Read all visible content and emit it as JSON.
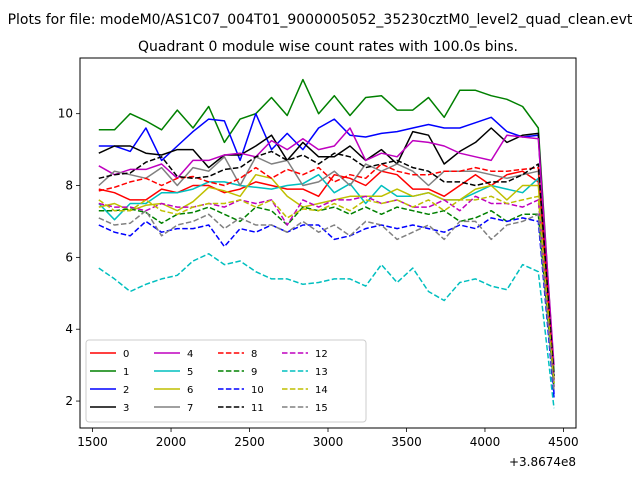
{
  "chart_data": {
    "type": "line",
    "suptitle": "Plots for file: modeM0/AS1C07_004T01_9000005052_35230cztM0_level2_quad_clean.evt",
    "title": "Quadrant 0 module wise count rates with 100.0s bins.",
    "xlabel": "",
    "ylabel": "",
    "x_offset_label": "+3.8674e8",
    "xlim": [
      1420,
      4580
    ],
    "ylim": [
      1.25,
      11.55
    ],
    "x_ticks": [
      1500,
      2000,
      2500,
      3000,
      3500,
      4000,
      4500
    ],
    "x_tick_labels": [
      "1500",
      "2000",
      "2500",
      "3000",
      "3500",
      "4000",
      "4500"
    ],
    "y_ticks": [
      2,
      4,
      6,
      8,
      10
    ],
    "y_tick_labels": [
      "2",
      "4",
      "6",
      "8",
      "10"
    ],
    "legend_location": "lower-left",
    "x": [
      1540,
      1640,
      1740,
      1840,
      1940,
      2040,
      2140,
      2240,
      2340,
      2440,
      2540,
      2640,
      2740,
      2840,
      2940,
      3040,
      3140,
      3240,
      3340,
      3440,
      3540,
      3640,
      3740,
      3840,
      3940,
      4040,
      4140,
      4240,
      4340,
      4440
    ],
    "series": [
      {
        "name": "0",
        "color": "#ff0000",
        "dash": "solid",
        "values": [
          7.9,
          7.8,
          7.6,
          7.6,
          7.9,
          7.8,
          8.0,
          8.0,
          7.8,
          7.9,
          8.1,
          8.0,
          7.9,
          7.9,
          7.7,
          8.3,
          8.2,
          8.0,
          8.4,
          8.3,
          7.9,
          7.9,
          7.7,
          8.0,
          8.3,
          8.0,
          8.3,
          8.4,
          8.1,
          2.6
        ]
      },
      {
        "name": "1",
        "color": "#008000",
        "dash": "solid",
        "values": [
          9.55,
          9.55,
          10.0,
          9.8,
          9.55,
          10.1,
          9.6,
          10.2,
          9.2,
          9.85,
          10.0,
          10.45,
          9.95,
          10.95,
          10.0,
          10.5,
          9.95,
          10.45,
          10.5,
          10.1,
          10.1,
          10.45,
          9.9,
          10.65,
          10.65,
          10.5,
          10.4,
          10.2,
          9.6,
          2.8
        ]
      },
      {
        "name": "2",
        "color": "#0000ff",
        "dash": "solid",
        "values": [
          9.1,
          9.1,
          8.95,
          9.6,
          8.7,
          9.1,
          9.5,
          9.85,
          9.8,
          8.7,
          10.0,
          9.0,
          9.45,
          9.0,
          9.6,
          9.85,
          9.4,
          9.35,
          9.45,
          9.5,
          9.6,
          9.7,
          9.6,
          9.6,
          9.75,
          9.9,
          9.5,
          9.35,
          9.4,
          2.2
        ]
      },
      {
        "name": "3",
        "color": "#000000",
        "dash": "solid",
        "values": [
          8.9,
          9.1,
          9.1,
          8.9,
          8.85,
          9.0,
          9.0,
          8.5,
          8.85,
          8.85,
          9.1,
          9.4,
          8.7,
          9.2,
          8.8,
          8.8,
          9.1,
          8.7,
          9.0,
          8.6,
          9.5,
          9.4,
          8.6,
          8.95,
          9.2,
          9.6,
          9.2,
          9.4,
          9.45,
          2.6
        ]
      },
      {
        "name": "4",
        "color": "#bf00bf",
        "dash": "solid",
        "values": [
          8.55,
          8.3,
          8.45,
          8.45,
          8.6,
          8.2,
          8.7,
          8.7,
          8.85,
          8.9,
          8.8,
          9.25,
          9.0,
          9.3,
          9.0,
          9.1,
          9.6,
          8.7,
          8.9,
          8.8,
          9.25,
          9.2,
          9.1,
          8.9,
          8.8,
          8.7,
          9.4,
          9.35,
          9.3,
          3.0
        ]
      },
      {
        "name": "5",
        "color": "#00bfbf",
        "dash": "solid",
        "values": [
          7.5,
          7.05,
          7.5,
          7.5,
          7.8,
          7.8,
          7.9,
          8.1,
          8.1,
          8.0,
          7.95,
          7.9,
          8.0,
          8.05,
          8.3,
          7.8,
          8.05,
          7.5,
          8.0,
          7.7,
          7.7,
          7.8,
          7.6,
          7.6,
          7.8,
          8.0,
          7.9,
          7.8,
          8.2,
          2.7
        ]
      },
      {
        "name": "6",
        "color": "#bfbf00",
        "dash": "solid",
        "values": [
          7.4,
          7.5,
          7.3,
          7.45,
          7.5,
          7.3,
          7.55,
          7.95,
          7.85,
          7.7,
          8.3,
          8.2,
          7.7,
          7.4,
          7.5,
          7.6,
          7.7,
          7.7,
          7.7,
          7.9,
          7.7,
          7.8,
          7.6,
          7.6,
          7.9,
          8.0,
          7.6,
          8.0,
          8.0,
          2.5
        ]
      },
      {
        "name": "7",
        "color": "#808080",
        "dash": "solid",
        "values": [
          8.0,
          8.4,
          8.3,
          8.2,
          8.5,
          8.0,
          8.5,
          8.4,
          8.8,
          8.0,
          8.8,
          8.6,
          8.7,
          8.0,
          8.1,
          8.4,
          8.0,
          8.6,
          8.4,
          8.6,
          8.4,
          8.0,
          8.4,
          8.4,
          8.4,
          8.3,
          8.2,
          8.3,
          8.4,
          2.5
        ]
      },
      {
        "name": "8",
        "color": "#ff0000",
        "dash": "dashed",
        "values": [
          7.85,
          7.95,
          8.1,
          8.2,
          8.0,
          8.2,
          8.25,
          8.1,
          8.0,
          8.2,
          8.5,
          8.2,
          8.45,
          8.3,
          8.5,
          8.1,
          8.3,
          8.2,
          8.6,
          8.4,
          8.3,
          8.3,
          8.4,
          8.4,
          8.5,
          8.4,
          8.4,
          8.45,
          8.5,
          2.6
        ]
      },
      {
        "name": "9",
        "color": "#008000",
        "dash": "dashed",
        "values": [
          7.3,
          7.3,
          7.35,
          7.25,
          6.95,
          7.2,
          7.25,
          7.4,
          7.2,
          7.0,
          7.4,
          7.3,
          6.9,
          7.4,
          7.3,
          7.4,
          7.2,
          7.4,
          7.2,
          7.4,
          7.3,
          7.2,
          7.3,
          7.0,
          7.1,
          7.3,
          7.0,
          7.2,
          7.2,
          2.4
        ]
      },
      {
        "name": "10",
        "color": "#0000ff",
        "dash": "dashed",
        "values": [
          6.9,
          6.7,
          6.6,
          7.0,
          6.7,
          6.8,
          6.8,
          6.9,
          6.3,
          6.8,
          6.7,
          6.9,
          6.7,
          6.9,
          6.9,
          6.5,
          6.6,
          6.8,
          6.9,
          6.8,
          6.9,
          6.8,
          6.7,
          6.9,
          6.8,
          7.1,
          7.0,
          7.1,
          7.0,
          2.1
        ]
      },
      {
        "name": "11",
        "color": "#000000",
        "dash": "dashed",
        "values": [
          8.2,
          8.3,
          8.35,
          8.65,
          8.8,
          8.25,
          8.2,
          8.25,
          8.45,
          8.5,
          8.8,
          8.95,
          8.7,
          8.85,
          8.6,
          8.9,
          8.8,
          8.5,
          8.6,
          8.7,
          8.5,
          8.4,
          8.1,
          8.1,
          8.0,
          8.1,
          8.1,
          8.3,
          8.6,
          2.7
        ]
      },
      {
        "name": "12",
        "color": "#bf00bf",
        "dash": "dashed",
        "values": [
          7.5,
          7.4,
          7.4,
          7.3,
          7.5,
          7.4,
          7.4,
          7.5,
          7.4,
          7.6,
          7.5,
          7.6,
          6.9,
          7.6,
          7.4,
          7.6,
          7.6,
          7.7,
          7.5,
          7.6,
          7.4,
          7.4,
          7.6,
          7.3,
          7.7,
          7.5,
          7.5,
          7.4,
          7.6,
          2.4
        ]
      },
      {
        "name": "13",
        "color": "#00bfbf",
        "dash": "dashed",
        "values": [
          5.7,
          5.4,
          5.05,
          5.25,
          5.4,
          5.5,
          5.9,
          6.1,
          5.8,
          5.9,
          5.6,
          5.4,
          5.4,
          5.25,
          5.3,
          5.4,
          5.4,
          5.2,
          5.8,
          5.3,
          5.7,
          5.05,
          4.8,
          5.3,
          5.4,
          5.2,
          5.1,
          5.8,
          5.6,
          1.8
        ]
      },
      {
        "name": "14",
        "color": "#bfbf00",
        "dash": "dashed",
        "values": [
          7.6,
          7.3,
          7.3,
          7.6,
          7.3,
          7.2,
          7.4,
          7.5,
          7.5,
          7.6,
          7.4,
          7.6,
          7.1,
          7.35,
          7.3,
          7.5,
          7.3,
          7.6,
          7.5,
          7.6,
          7.4,
          7.6,
          7.3,
          7.6,
          7.6,
          7.7,
          7.5,
          7.6,
          7.7,
          2.5
        ]
      },
      {
        "name": "15",
        "color": "#808080",
        "dash": "dashed",
        "values": [
          7.1,
          6.9,
          6.95,
          7.3,
          6.6,
          6.9,
          7.0,
          7.2,
          6.8,
          7.1,
          6.9,
          6.9,
          6.7,
          7.0,
          6.7,
          6.9,
          6.6,
          7.0,
          6.9,
          6.5,
          6.7,
          6.9,
          6.5,
          7.0,
          7.0,
          6.5,
          6.9,
          7.0,
          7.2,
          2.3
        ]
      }
    ]
  }
}
